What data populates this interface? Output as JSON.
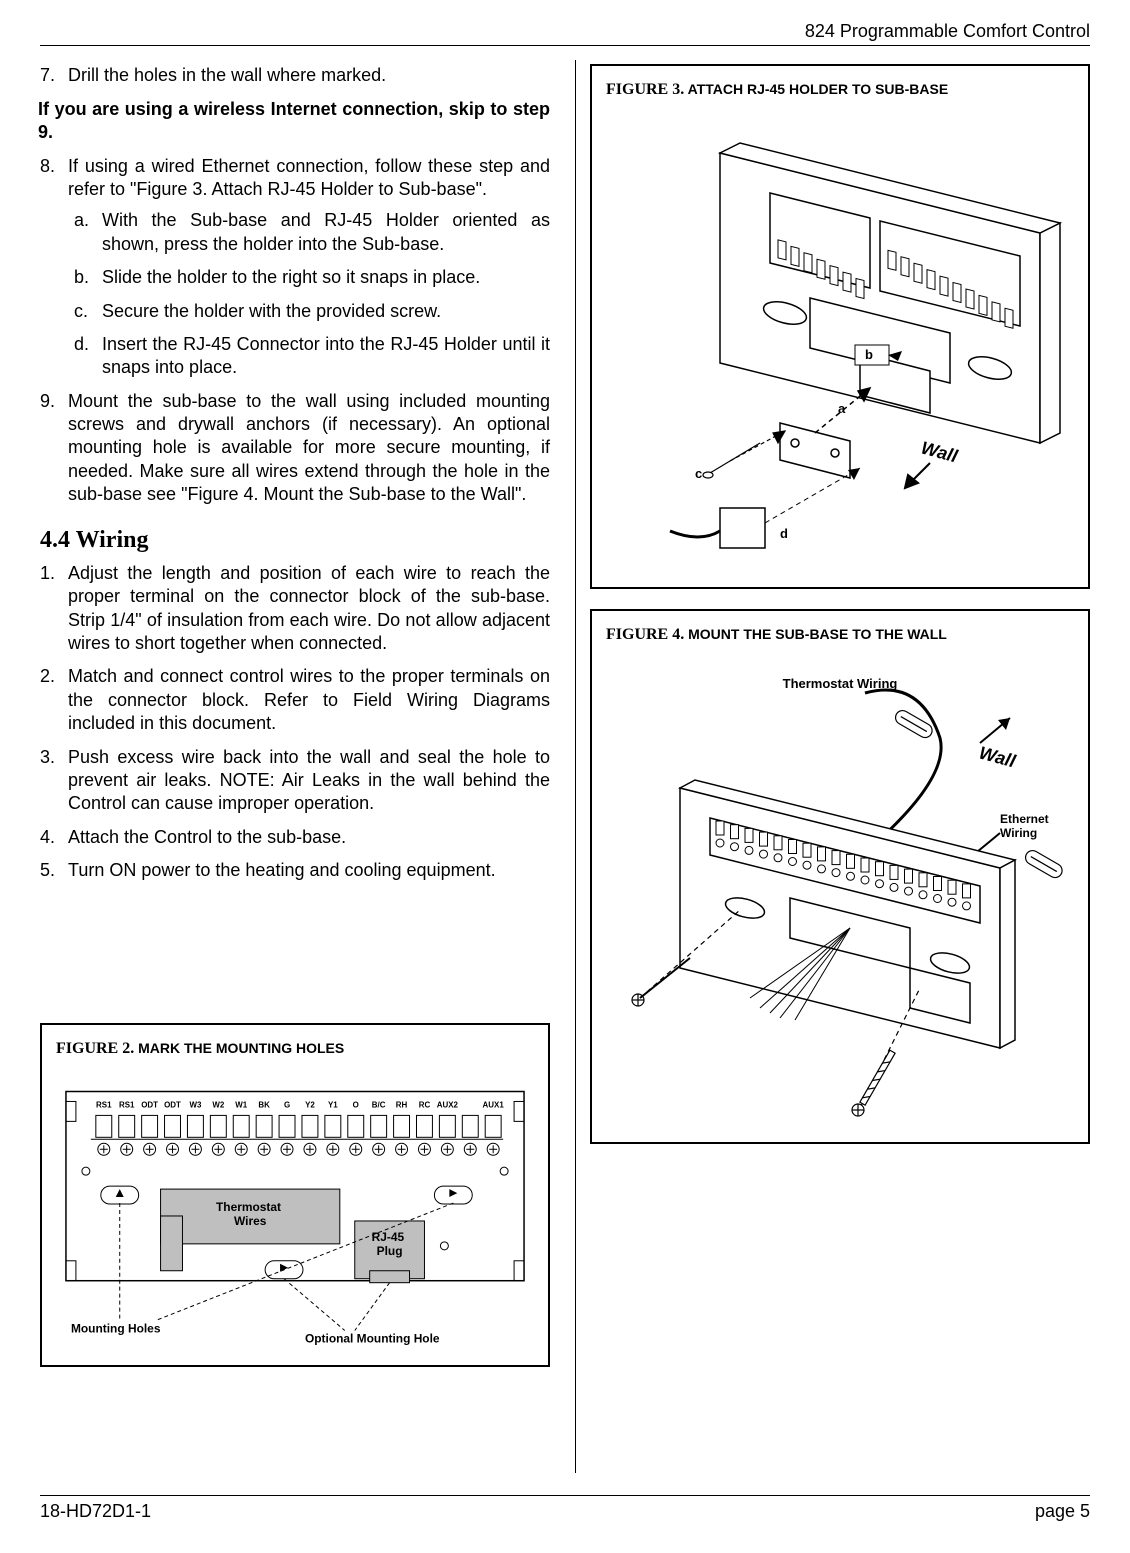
{
  "header": {
    "title": "824 Programmable Comfort Control"
  },
  "footer": {
    "doc_id": "18-HD72D1-1",
    "page_label": "page 5"
  },
  "left": {
    "step7": {
      "num": "7.",
      "text": "Drill the holes in the wall where marked."
    },
    "wireless_note": "If you are using a wireless Internet connection, skip to step 9.",
    "step8": {
      "num": "8.",
      "text": "If using a wired Ethernet connection, follow these step and refer to \"Figure 3. Attach RJ-45 Holder to Sub-base\".",
      "a": {
        "let": "a.",
        "text": "With the Sub-base and RJ-45 Holder oriented as shown, press the holder into the Sub-base."
      },
      "b": {
        "let": "b.",
        "text": "Slide the holder to the right so it snaps in place."
      },
      "c": {
        "let": "c.",
        "text": "Secure the holder with the provided screw."
      },
      "d": {
        "let": "d.",
        "text": "Insert the RJ-45 Connector into the RJ-45 Holder until it snaps into place."
      }
    },
    "step9": {
      "num": "9.",
      "text": "Mount the sub-base to the wall using included mounting screws and drywall anchors (if necessary). An optional mounting hole is available for more secure mounting, if needed. Make sure all wires extend through the hole in the sub-base see \"Figure 4. Mount the Sub-base to the Wall\"."
    },
    "section": "4.4    Wiring",
    "w1": {
      "num": "1.",
      "text": "Adjust the length and position of each wire to reach the proper terminal on the connector block of the sub-base. Strip 1/4\" of insulation from each wire. Do not allow adjacent wires to short together when connected."
    },
    "w2": {
      "num": "2.",
      "text": "Match and connect control wires to the proper terminals on the connector block. Refer to Field Wiring Diagrams included in this document."
    },
    "w3": {
      "num": "3.",
      "text": "Push excess wire back into the wall and seal the hole to prevent air leaks. NOTE: Air Leaks in the wall behind the Control can cause improper operation."
    },
    "w4": {
      "num": "4.",
      "text": "Attach the Control to the sub-base."
    },
    "w5": {
      "num": "5.",
      "text": "Turn ON power to the heating and cooling equipment."
    }
  },
  "figure2": {
    "caption_num": "FIGURE 2.",
    "caption_text": "MARK THE MOUNTING HOLES",
    "terminals": [
      "RS1",
      "RS1",
      "ODT",
      "ODT",
      "W3",
      "W2",
      "W1",
      "BK",
      "G",
      "Y2",
      "Y1",
      "O",
      "B/C",
      "RH",
      "RC",
      "AUX2",
      "",
      "AUX1"
    ],
    "thermostat_label": "Thermostat\nWires",
    "rj45_label": "RJ-45\nPlug",
    "mount_label": "Mounting Holes",
    "opt_mount_label": "Optional Mounting Hole",
    "colors": {
      "thermostat_fill": "#bfbfbf",
      "rj45_fill": "#bfbfbf"
    }
  },
  "figure3": {
    "caption_num": "FIGURE 3.",
    "caption_text": "ATTACH RJ-45 HOLDER TO SUB-BASE",
    "labels": {
      "a": "a",
      "b": "b",
      "c": "c",
      "d": "d",
      "wall": "Wall"
    }
  },
  "figure4": {
    "caption_num": "FIGURE 4.",
    "caption_text": "MOUNT THE SUB-BASE TO THE WALL",
    "labels": {
      "thermostat": "Thermostat Wiring",
      "ethernet": "Ethernet\nWiring",
      "wall": "Wall"
    }
  }
}
